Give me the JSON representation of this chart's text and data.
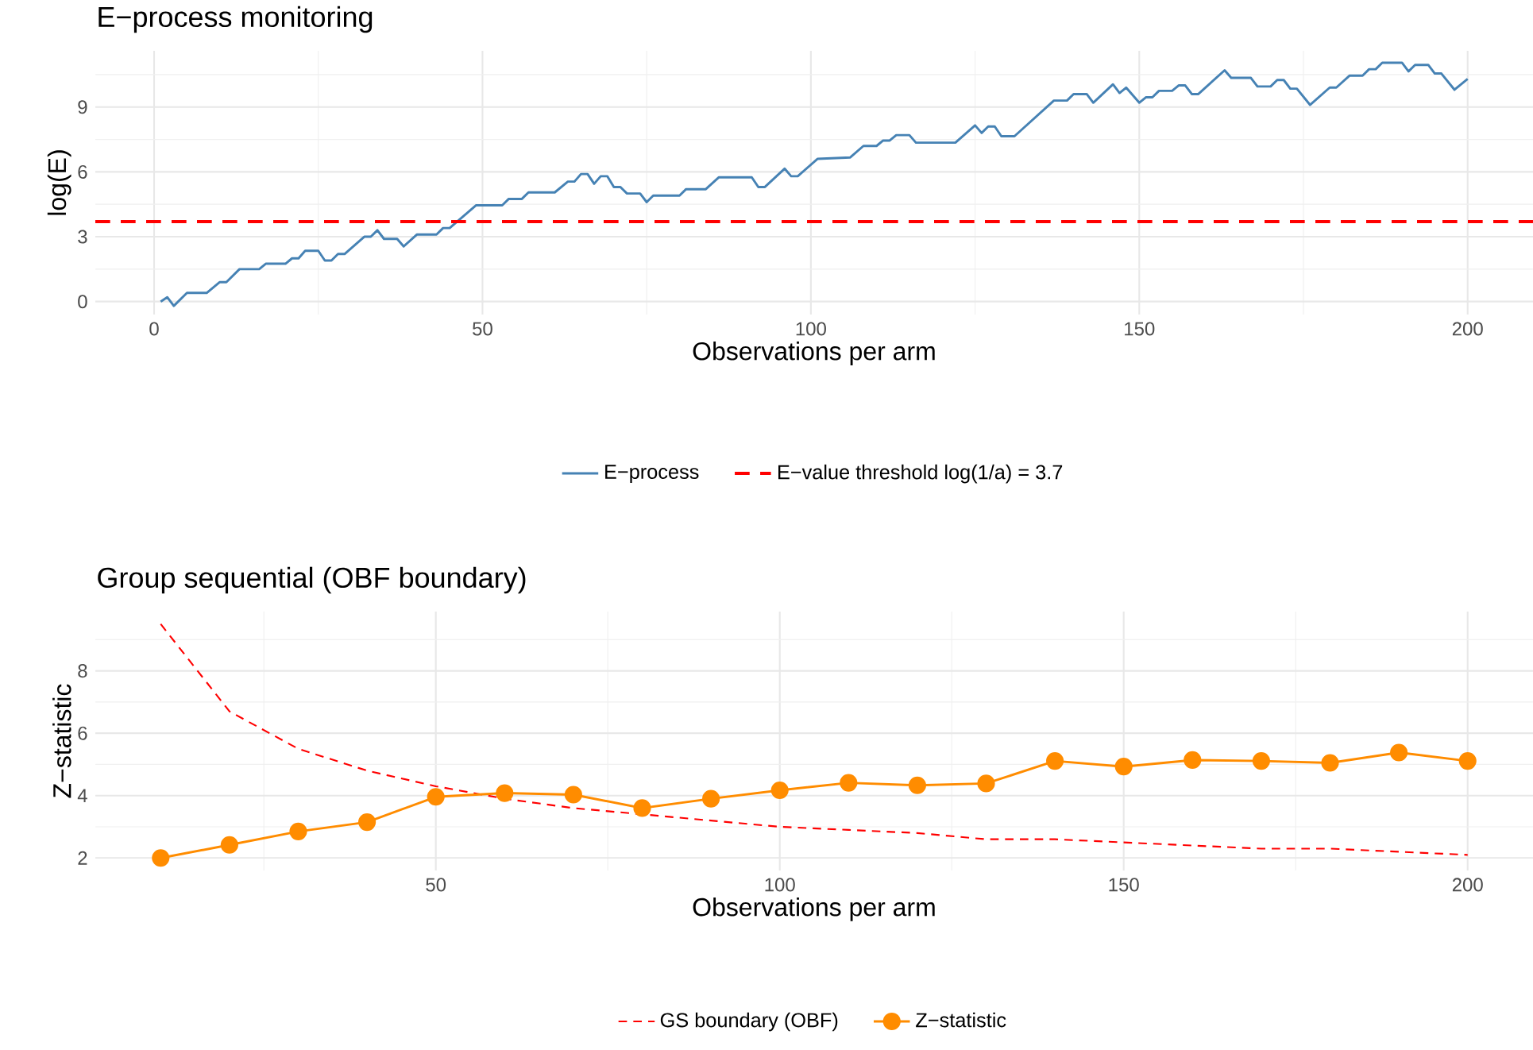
{
  "chart_data": [
    {
      "type": "line",
      "title": "E−process monitoring",
      "xlabel": "Observations per arm",
      "ylabel": "log(E)",
      "xlim": [
        -8.95,
        209.95
      ],
      "ylim": [
        -0.6,
        11.6
      ],
      "xticks": [
        0,
        50,
        100,
        150,
        200
      ],
      "yticks": [
        0,
        3,
        6,
        9
      ],
      "grid": true,
      "legend": "bottom",
      "series": [
        {
          "name": "E−process",
          "color": "#4682b4",
          "line_style": "solid",
          "marker": "none",
          "x": [
            1,
            2,
            3,
            5,
            8,
            10,
            11,
            13,
            16,
            17,
            20,
            21,
            22,
            23,
            25,
            26,
            27,
            28,
            29,
            32,
            33,
            34,
            35,
            37,
            38,
            40,
            43,
            44,
            45,
            49,
            53,
            54,
            56,
            57,
            61,
            63,
            64,
            65,
            66,
            67,
            68,
            69,
            70,
            71,
            72,
            74,
            75,
            76,
            80,
            81,
            84,
            86,
            91,
            92,
            93,
            96,
            97,
            98,
            101,
            106,
            108,
            110,
            111,
            112,
            113,
            115,
            116,
            122,
            125,
            126,
            127,
            128,
            129,
            131,
            137,
            139,
            140,
            142,
            143,
            146,
            147,
            148,
            150,
            151,
            152,
            153,
            155,
            156,
            157,
            158,
            159,
            163,
            164,
            167,
            168,
            170,
            171,
            172,
            173,
            174,
            176,
            179,
            180,
            182,
            184,
            185,
            186,
            187,
            190,
            191,
            192,
            194,
            195,
            196,
            198,
            200
          ],
          "values": [
            0.0,
            0.2,
            -0.2,
            0.4,
            0.4,
            0.9,
            0.9,
            1.5,
            1.5,
            1.75,
            1.75,
            2.0,
            2.0,
            2.35,
            2.35,
            1.9,
            1.9,
            2.2,
            2.2,
            3.0,
            3.0,
            3.3,
            2.9,
            2.9,
            2.55,
            3.1,
            3.1,
            3.4,
            3.4,
            4.45,
            4.45,
            4.75,
            4.75,
            5.05,
            5.05,
            5.55,
            5.55,
            5.9,
            5.9,
            5.45,
            5.8,
            5.8,
            5.3,
            5.3,
            5.0,
            5.0,
            4.6,
            4.9,
            4.9,
            5.2,
            5.2,
            5.75,
            5.75,
            5.3,
            5.3,
            6.15,
            5.8,
            5.8,
            6.6,
            6.67,
            7.2,
            7.2,
            7.45,
            7.45,
            7.7,
            7.7,
            7.35,
            7.35,
            8.15,
            7.8,
            8.1,
            8.1,
            7.65,
            7.65,
            9.3,
            9.3,
            9.6,
            9.6,
            9.2,
            10.05,
            9.65,
            9.9,
            9.2,
            9.45,
            9.45,
            9.75,
            9.75,
            10.0,
            10.0,
            9.6,
            9.6,
            10.7,
            10.35,
            10.35,
            9.95,
            9.95,
            10.25,
            10.25,
            9.85,
            9.85,
            9.1,
            9.9,
            9.9,
            10.45,
            10.45,
            10.75,
            10.75,
            11.05,
            11.05,
            10.65,
            10.95,
            10.95,
            10.55,
            10.55,
            9.8,
            10.3
          ]
        }
      ],
      "ref_lines": [
        {
          "axis": "y",
          "value": 3.7,
          "label": "E−value threshold log(1/a) = 3.7",
          "color": "#ff0000",
          "line_style": "dashed"
        }
      ]
    },
    {
      "type": "line",
      "title": "Group sequential (OBF boundary)",
      "xlabel": "Observations per arm",
      "ylabel": "Z−statistic",
      "xlim": [
        0.5,
        209.5
      ],
      "ylim": [
        1.6,
        9.9
      ],
      "xticks": [
        50,
        100,
        150,
        200
      ],
      "yticks": [
        2,
        4,
        6,
        8
      ],
      "grid": true,
      "legend": "bottom",
      "x": [
        10,
        20,
        30,
        40,
        50,
        60,
        70,
        80,
        90,
        100,
        110,
        120,
        130,
        140,
        150,
        160,
        170,
        180,
        190,
        200
      ],
      "series": [
        {
          "name": "GS boundary (OBF)",
          "color": "#ff0000",
          "line_style": "dashed",
          "marker": "none",
          "values": [
            9.5,
            6.7,
            5.5,
            4.8,
            4.3,
            3.9,
            3.6,
            3.4,
            3.2,
            3.0,
            2.9,
            2.8,
            2.6,
            2.6,
            2.5,
            2.4,
            2.3,
            2.3,
            2.2,
            2.1
          ]
        },
        {
          "name": "Z−statistic",
          "color": "#ff8c00",
          "line_style": "solid",
          "marker": "circle",
          "values": [
            2.0,
            2.42,
            2.85,
            3.15,
            3.96,
            4.08,
            4.03,
            3.6,
            3.9,
            4.17,
            4.41,
            4.33,
            4.39,
            5.11,
            4.93,
            5.14,
            5.11,
            5.05,
            5.38,
            5.11
          ]
        }
      ]
    }
  ]
}
